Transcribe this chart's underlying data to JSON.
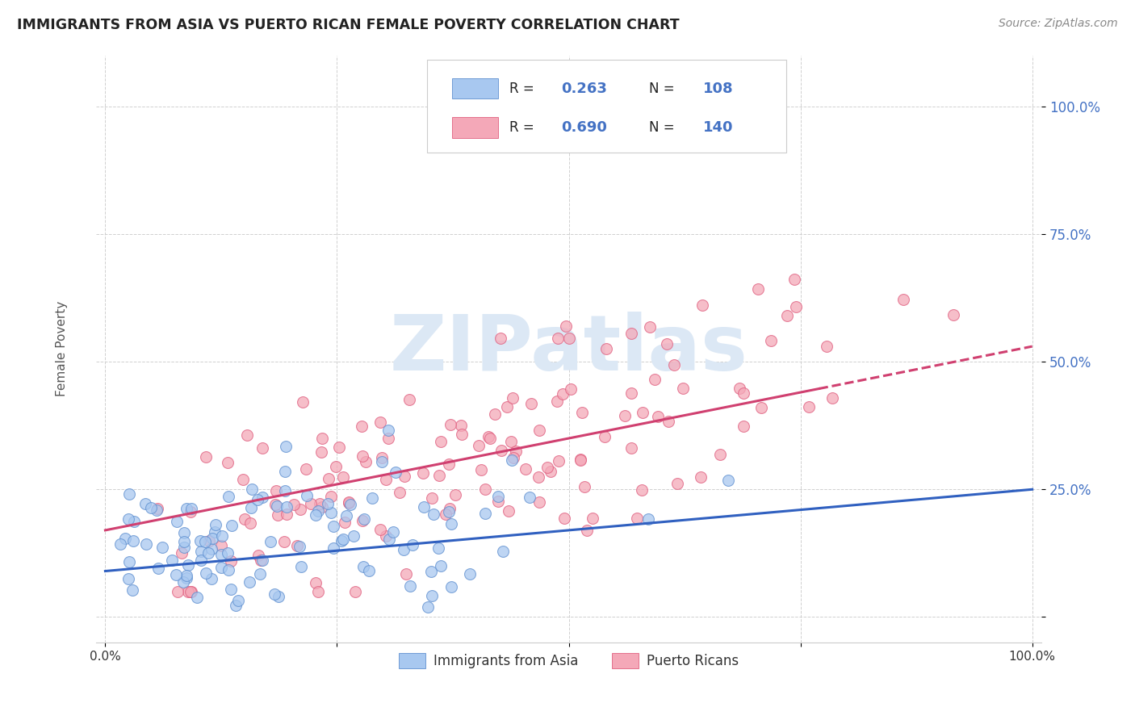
{
  "title": "IMMIGRANTS FROM ASIA VS PUERTO RICAN FEMALE POVERTY CORRELATION CHART",
  "source": "Source: ZipAtlas.com",
  "ylabel": "Female Poverty",
  "blue_R": 0.263,
  "blue_N": 108,
  "pink_R": 0.69,
  "pink_N": 140,
  "blue_color": "#a8c8f0",
  "pink_color": "#f4a8b8",
  "blue_edge_color": "#6090d0",
  "pink_edge_color": "#e06080",
  "blue_line_color": "#3060c0",
  "pink_line_color": "#d04070",
  "tick_color": "#4472C4",
  "title_color": "#222222",
  "source_color": "#888888",
  "background_color": "#ffffff",
  "grid_color": "#d0d0d0",
  "watermark": "ZIPatlas",
  "watermark_color": "#dce8f5",
  "legend_border_color": "#cccccc"
}
